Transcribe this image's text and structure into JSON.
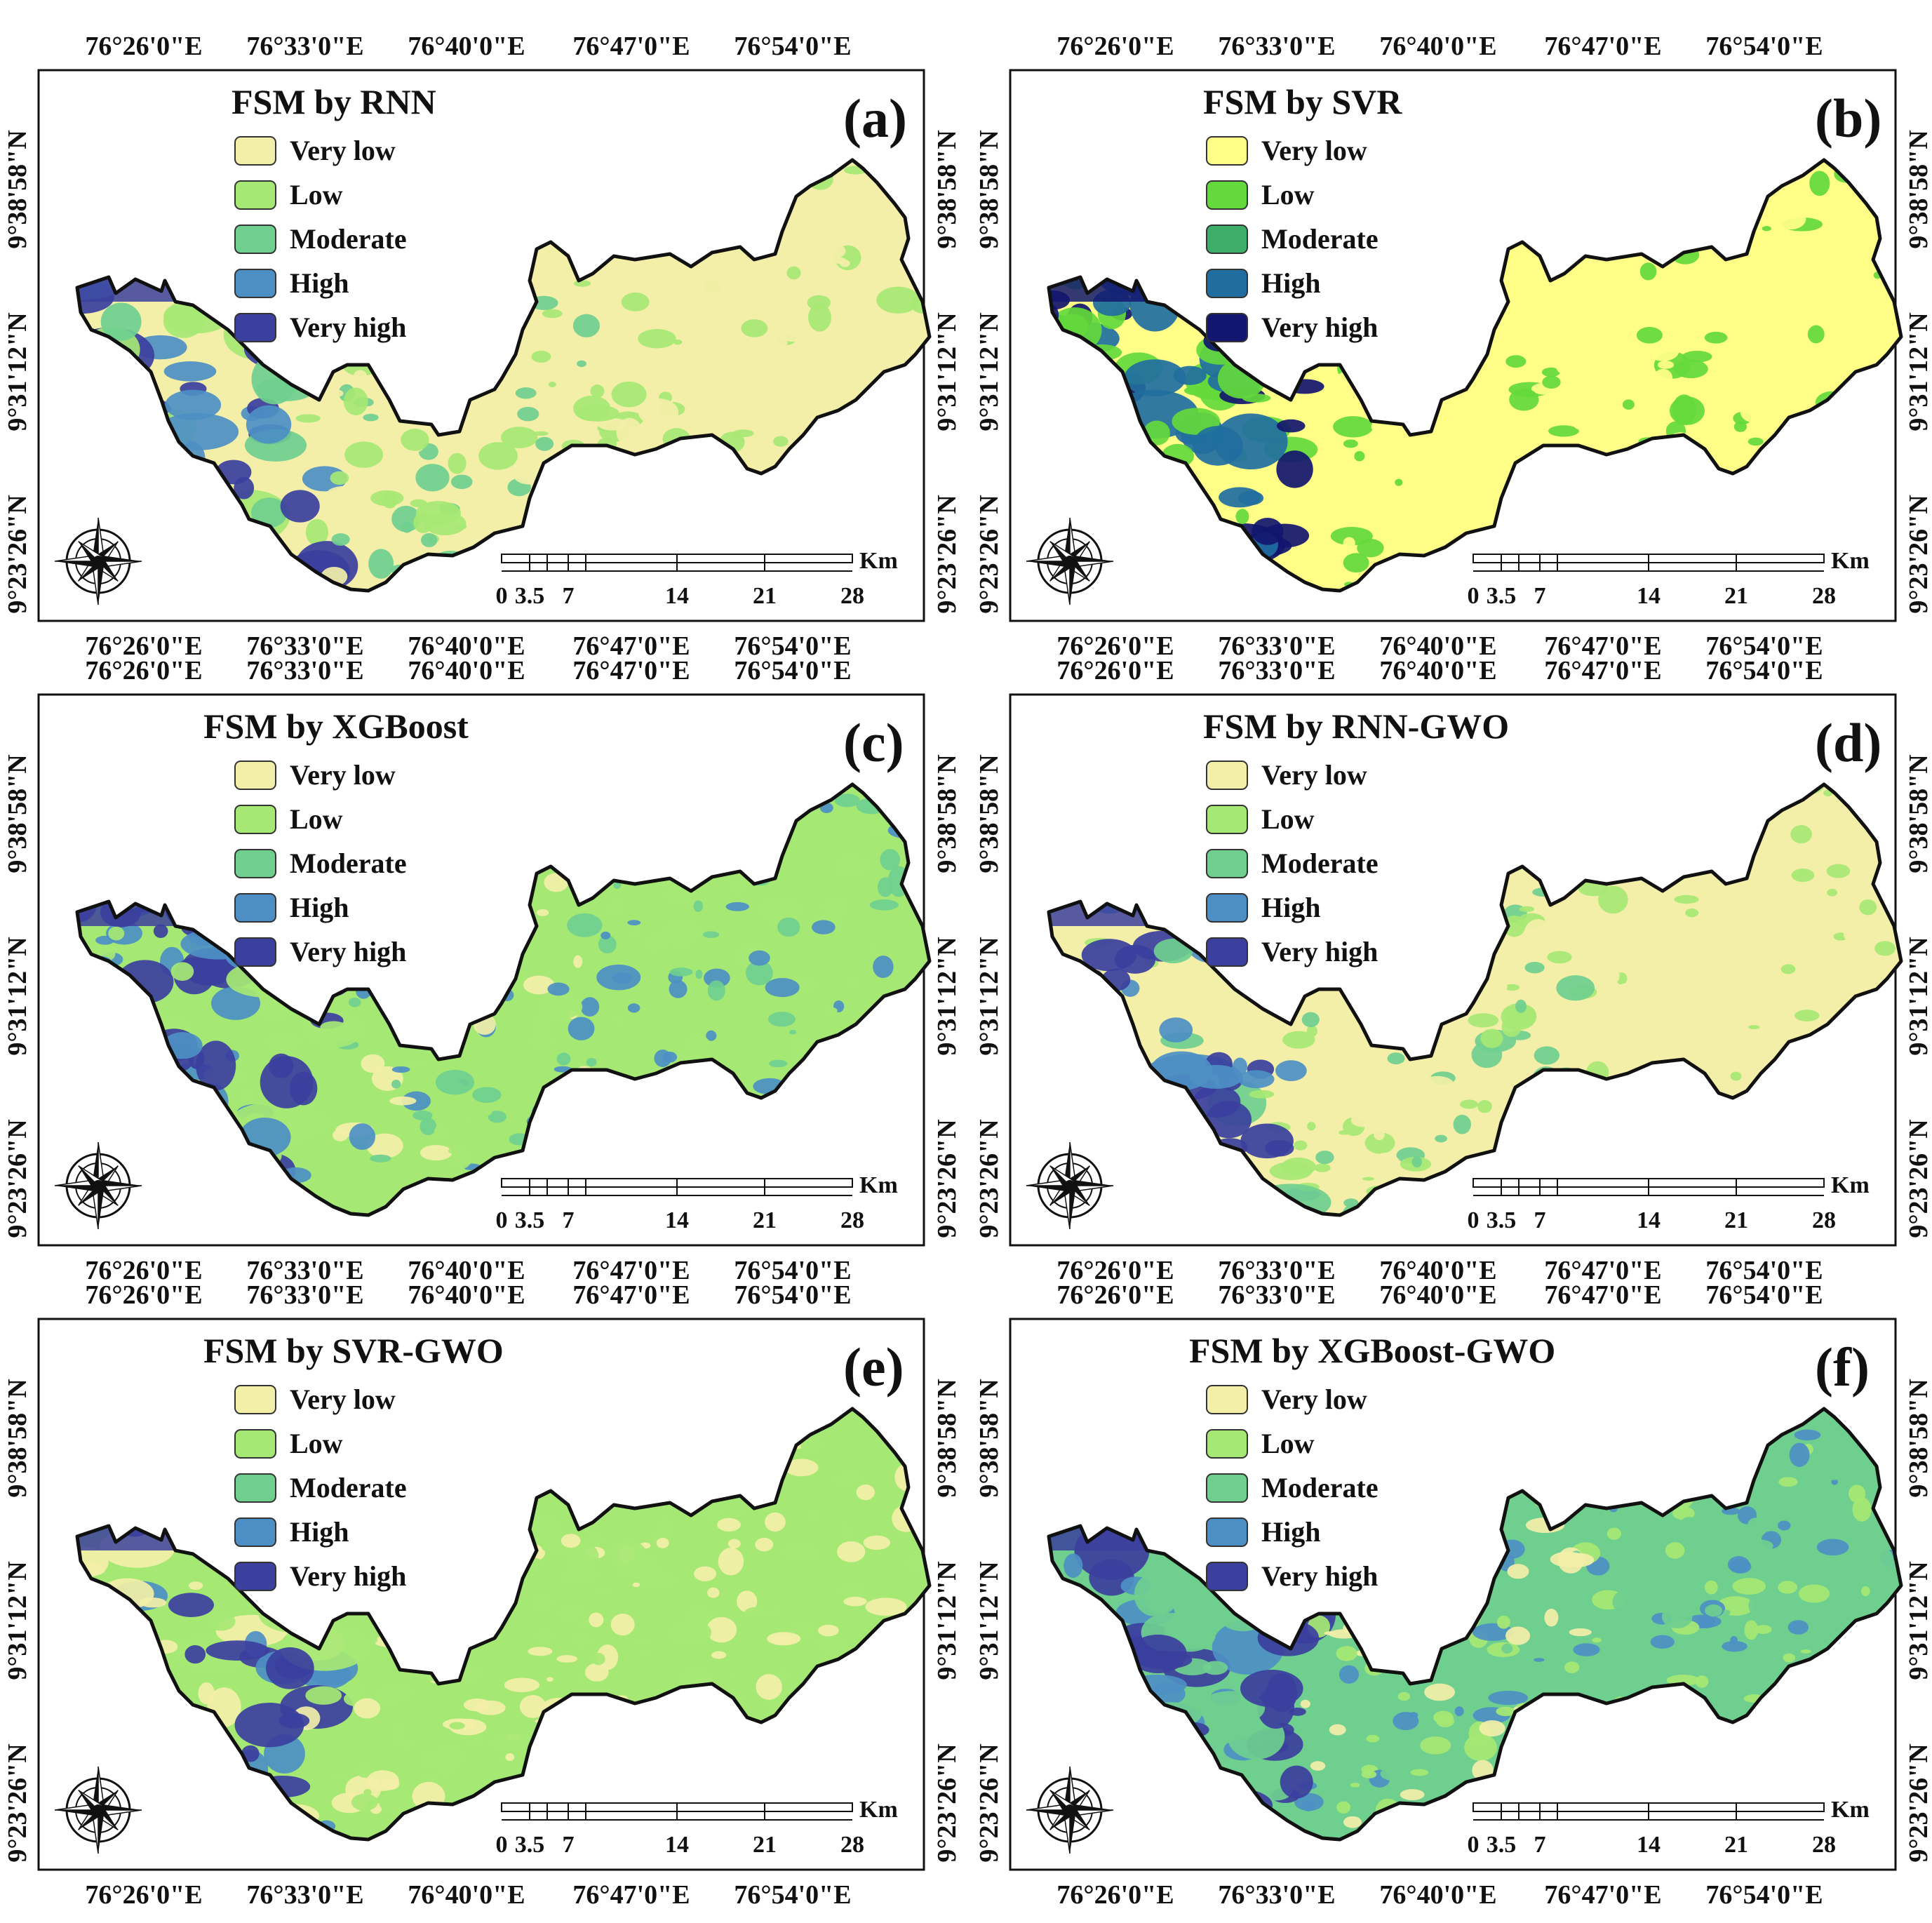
{
  "colors": {
    "very_low": "#f3efa8",
    "low": "#a6e874",
    "moderate": "#6fcf8f",
    "high": "#4d8fc4",
    "very_high": "#3b3f9e",
    "svr_very_low": "#ffff88",
    "svr_low": "#63d93b",
    "svr_moderate": "#3cae6a",
    "svr_high": "#1f6e9f",
    "svr_very_high": "#12166e"
  },
  "panels": [
    {
      "id": "a",
      "letter": "(a)",
      "title": "FSM by RNN",
      "legend": [
        "Very low",
        "Low",
        "Moderate",
        "High",
        "Very high"
      ],
      "scheme": "default",
      "dominant": "very_low"
    },
    {
      "id": "b",
      "letter": "(b)",
      "title": "FSM by SVR",
      "legend": [
        "Very low",
        "Low",
        "Moderate",
        "High",
        "Very high"
      ],
      "scheme": "svr",
      "dominant": "very_low"
    },
    {
      "id": "c",
      "letter": "(c)",
      "title": "FSM by XGBoost",
      "legend": [
        "Very low",
        "Low",
        "Moderate",
        "High",
        "Very high"
      ],
      "scheme": "default",
      "dominant": "low"
    },
    {
      "id": "d",
      "letter": "(d)",
      "title": "FSM by RNN-GWO",
      "legend": [
        "Very low",
        "Low",
        "Moderate",
        "High",
        "Very high"
      ],
      "scheme": "default",
      "dominant": "very_low"
    },
    {
      "id": "e",
      "letter": "(e)",
      "title": "FSM by SVR-GWO",
      "legend": [
        "Very low",
        "Low",
        "Moderate",
        "High",
        "Very high"
      ],
      "scheme": "default",
      "dominant": "low"
    },
    {
      "id": "f",
      "letter": "(f)",
      "title": "FSM by XGBoost-GWO",
      "legend": [
        "Very low",
        "Low",
        "Moderate",
        "High",
        "Very high"
      ],
      "scheme": "default",
      "dominant": "moderate"
    }
  ],
  "lon_ticks": [
    "76°26'0\"E",
    "76°33'0\"E",
    "76°40'0\"E",
    "76°47'0\"E",
    "76°54'0\"E"
  ],
  "lat_ticks": [
    "9°38'58\"N",
    "9°31'12\"N",
    "9°23'26\"N"
  ],
  "scale_bar": {
    "labels": [
      "0",
      "3.5",
      "7",
      "14",
      "21",
      "28"
    ],
    "unit": "Km"
  }
}
